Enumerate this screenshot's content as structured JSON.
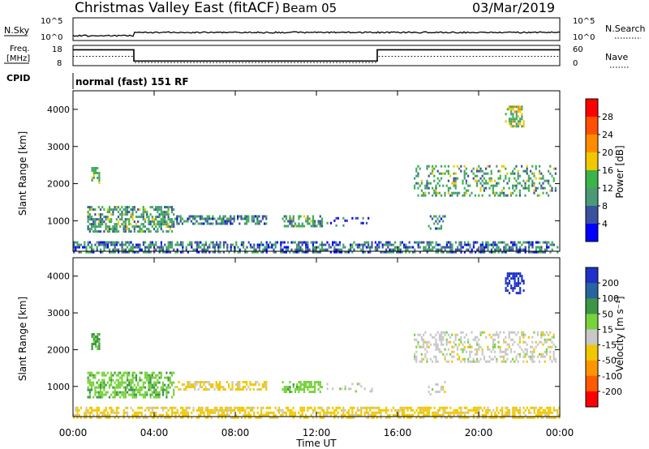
{
  "header": {
    "station": "Christmas Valley East (fitACF)",
    "beam": "Beam 05",
    "date": "03/Mar/2019"
  },
  "top_panel": {
    "nsky_label": "N.Sky",
    "nsky_ticks": [
      "10^5",
      "10^0"
    ],
    "nsearch_label": "N.Search",
    "nsearch_ticks": [
      "10^5",
      "10^0"
    ],
    "freq_label_1": "Freq.",
    "freq_label_2": "[MHz]",
    "freq_ticks": [
      "18",
      "8"
    ],
    "nave_label": "Nave",
    "nave_ticks": [
      "60",
      "0"
    ],
    "cpid_label": "CPID",
    "cpid_value": "normal (fast) 151 RF"
  },
  "chart_data": [
    {
      "type": "heatmap",
      "name": "power",
      "ylabel": "Slant Range [km]",
      "colorbar_label": "Power [dB]",
      "yticks": [
        "1000",
        "2000",
        "3000",
        "4000"
      ],
      "ylim": [
        180,
        4500
      ],
      "colorbar_ticks": [
        "4",
        "8",
        "12",
        "16",
        "20",
        "24",
        "28"
      ],
      "colorbar_range": [
        0,
        30
      ],
      "colors": [
        "#0000ff",
        "#3c50a0",
        "#4a9a78",
        "#3cb448",
        "#f0c800",
        "#ff8c00",
        "#ff5000",
        "#ff0000"
      ],
      "regions": [
        {
          "t": [
            0.9,
            1.3
          ],
          "r": [
            2050,
            2450
          ],
          "dens": 0.7,
          "v": 14
        },
        {
          "t": [
            0.7,
            5.0
          ],
          "r": [
            700,
            1400
          ],
          "dens": 0.6,
          "v": 11
        },
        {
          "t": [
            5.0,
            9.5
          ],
          "r": [
            950,
            1150
          ],
          "dens": 0.55,
          "v": 9
        },
        {
          "t": [
            10.3,
            12.3
          ],
          "r": [
            850,
            1150
          ],
          "dens": 0.55,
          "v": 11
        },
        {
          "t": [
            12.5,
            15.0
          ],
          "r": [
            900,
            1100
          ],
          "dens": 0.15,
          "v": 6
        },
        {
          "t": [
            17.5,
            18.3
          ],
          "r": [
            800,
            1150
          ],
          "dens": 0.3,
          "v": 9
        },
        {
          "t": [
            16.8,
            23.8
          ],
          "r": [
            1700,
            2500
          ],
          "dens": 0.35,
          "v": 12
        },
        {
          "t": [
            21.3,
            22.2
          ],
          "r": [
            3550,
            4100
          ],
          "dens": 0.55,
          "v": 15
        },
        {
          "t": [
            0.0,
            24.0
          ],
          "r": [
            180,
            450
          ],
          "dens": 0.55,
          "v": 8
        }
      ]
    },
    {
      "type": "heatmap",
      "name": "velocity",
      "ylabel": "Slant Range [km]",
      "colorbar_label": "Velocity [m s⁻¹]",
      "yticks": [
        "1000",
        "2000",
        "3000",
        "4000"
      ],
      "ylim": [
        180,
        4500
      ],
      "colorbar_ticks": [
        "200",
        "100",
        "50",
        "15",
        "-15",
        "-50",
        "-100",
        "-200"
      ],
      "colorbar_range": [
        -250,
        250
      ],
      "colors": [
        "#1e32c8",
        "#2864a0",
        "#3c9646",
        "#78d23c",
        "#c8c8c8",
        "#f0c800",
        "#ff9600",
        "#ff5a00",
        "#ff0000"
      ],
      "regions": [
        {
          "t": [
            0.9,
            1.3
          ],
          "r": [
            2050,
            2450
          ],
          "dens": 0.7,
          "v": 60
        },
        {
          "t": [
            0.7,
            5.0
          ],
          "r": [
            700,
            1400
          ],
          "dens": 0.6,
          "v": 40
        },
        {
          "t": [
            5.0,
            9.5
          ],
          "r": [
            950,
            1150
          ],
          "dens": 0.55,
          "v": -20
        },
        {
          "t": [
            10.3,
            12.3
          ],
          "r": [
            850,
            1150
          ],
          "dens": 0.55,
          "v": 35
        },
        {
          "t": [
            12.5,
            15.0
          ],
          "r": [
            900,
            1100
          ],
          "dens": 0.15,
          "v": 10
        },
        {
          "t": [
            17.5,
            18.3
          ],
          "r": [
            800,
            1150
          ],
          "dens": 0.3,
          "v": 0
        },
        {
          "t": [
            16.8,
            23.8
          ],
          "r": [
            1700,
            2500
          ],
          "dens": 0.35,
          "v": 0
        },
        {
          "t": [
            21.3,
            22.2
          ],
          "r": [
            3550,
            4100
          ],
          "dens": 0.55,
          "v": 220
        },
        {
          "t": [
            0.0,
            24.0
          ],
          "r": [
            180,
            450
          ],
          "dens": 0.55,
          "v": -30
        }
      ]
    }
  ],
  "x_axis": {
    "label": "Time UT",
    "ticks": [
      "00:00",
      "04:00",
      "08:00",
      "12:00",
      "16:00",
      "20:00",
      "00:00"
    ],
    "range_hours": [
      0,
      24
    ]
  },
  "freq_series": [
    {
      "t0": 0,
      "t1": 3,
      "mhz": 16.5
    },
    {
      "t0": 3,
      "t1": 15,
      "mhz": 10.5
    },
    {
      "t0": 15,
      "t1": 24,
      "mhz": 16.5
    }
  ],
  "nave_series": [
    {
      "t0": 0,
      "t1": 3,
      "value": 30
    },
    {
      "t0": 3,
      "t1": 15,
      "value": 10
    },
    {
      "t0": 15,
      "t1": 24,
      "value": 30
    }
  ]
}
